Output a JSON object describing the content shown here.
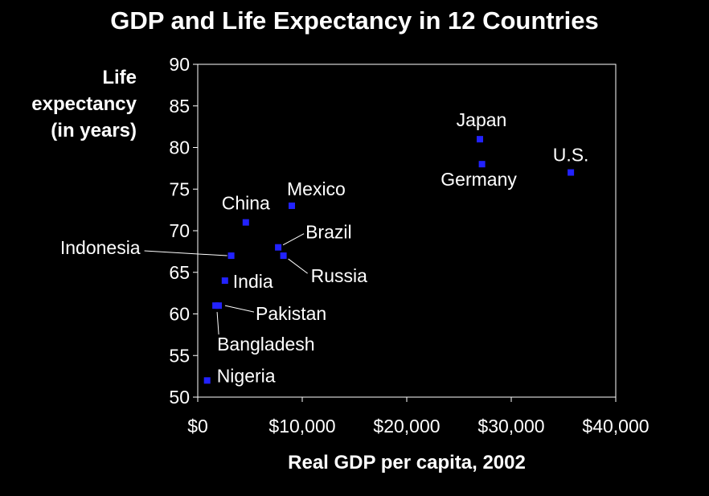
{
  "chart_data": {
    "type": "scatter",
    "title": "GDP and Life Expectancy in 12 Countries",
    "ylabel_lines": [
      "Life",
      "expectancy",
      "(in years)"
    ],
    "xlabel": "Real GDP per capita, 2002",
    "xlim": [
      0,
      40000
    ],
    "ylim": [
      50,
      90
    ],
    "x_ticks": [
      "$0",
      "$10,000",
      "$20,000",
      "$30,000",
      "$40,000"
    ],
    "y_ticks": [
      "50",
      "55",
      "60",
      "65",
      "70",
      "75",
      "80",
      "85",
      "90"
    ],
    "grid": false,
    "marker_color": "#2222ff",
    "points": [
      {
        "label": "Nigeria",
        "x": 900,
        "y": 52
      },
      {
        "label": "Bangladesh",
        "x": 1700,
        "y": 61
      },
      {
        "label": "Pakistan",
        "x": 2000,
        "y": 61
      },
      {
        "label": "India",
        "x": 2600,
        "y": 64
      },
      {
        "label": "Indonesia",
        "x": 3200,
        "y": 67
      },
      {
        "label": "China",
        "x": 4600,
        "y": 71
      },
      {
        "label": "Brazil",
        "x": 7700,
        "y": 68
      },
      {
        "label": "Russia",
        "x": 8200,
        "y": 67
      },
      {
        "label": "Mexico",
        "x": 9000,
        "y": 73
      },
      {
        "label": "Japan",
        "x": 27000,
        "y": 81
      },
      {
        "label": "Germany",
        "x": 27200,
        "y": 78
      },
      {
        "label": "U.S.",
        "x": 35700,
        "y": 77
      }
    ]
  }
}
